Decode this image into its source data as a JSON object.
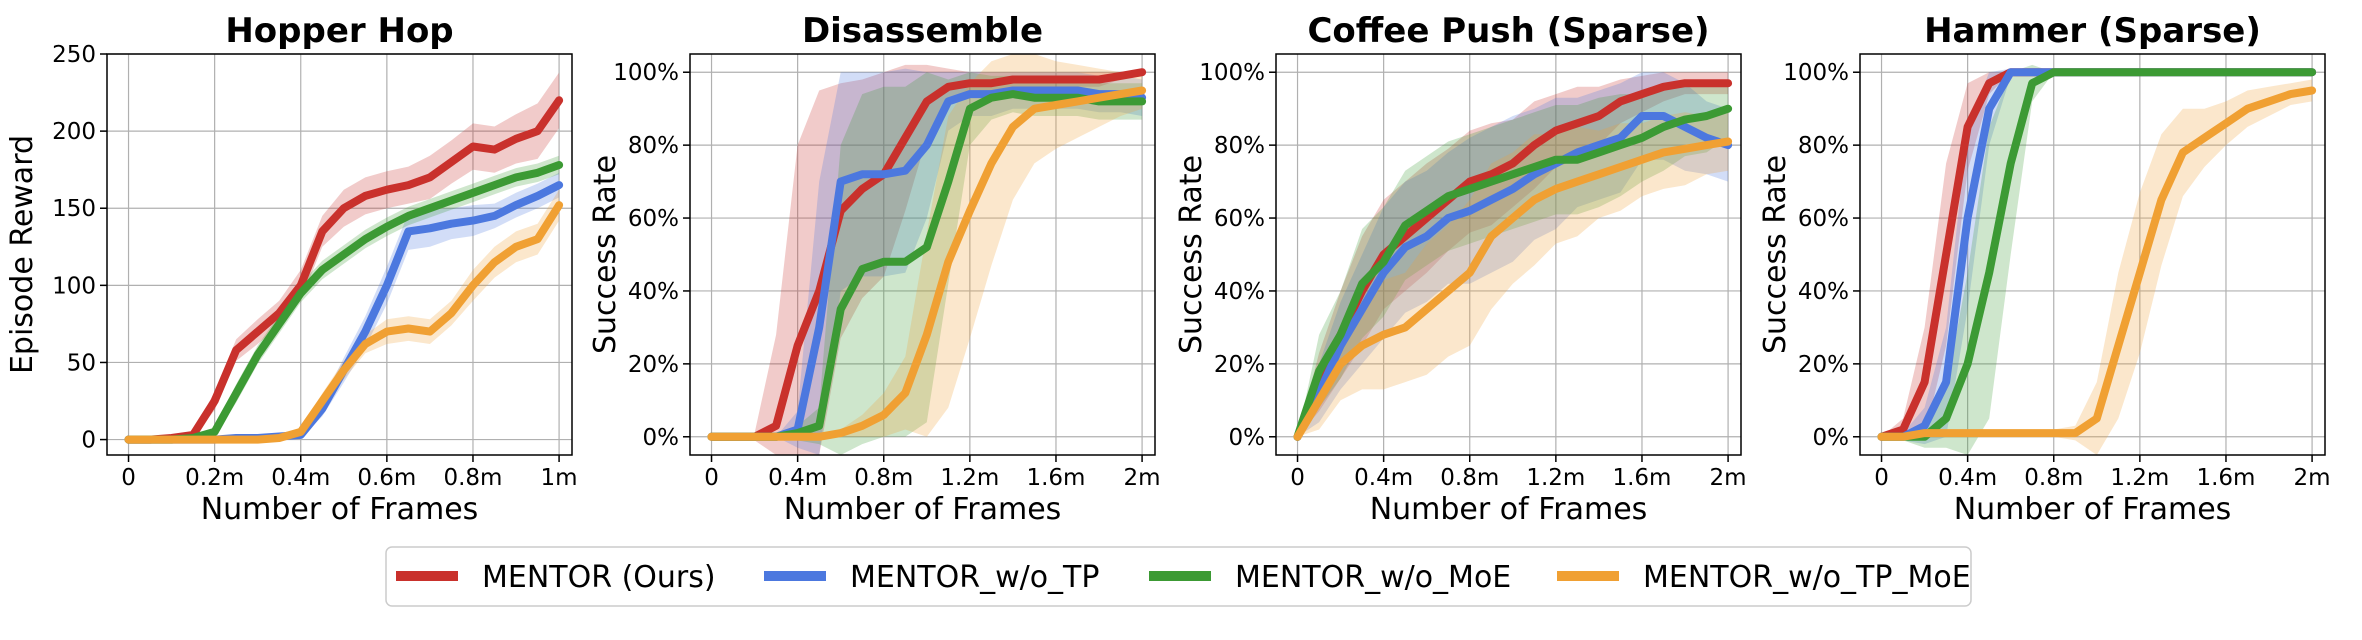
{
  "colors": {
    "series": [
      "#c9312c",
      "#4c78df",
      "#3c9a34",
      "#f0a033"
    ]
  },
  "legend": {
    "placement": "bottom-center",
    "entries": [
      "MENTOR (Ours)",
      "MENTOR_w/o_TP",
      "MENTOR_w/o_MoE",
      "MENTOR_w/o_TP_MoE"
    ]
  },
  "chart_data": [
    {
      "type": "line",
      "title": "Hopper Hop",
      "xlabel": "Number of Frames",
      "ylabel": "Episode Reward",
      "xlim": [
        -0.05,
        1.03
      ],
      "ylim": [
        -10,
        250
      ],
      "xticks": [
        0,
        0.2,
        0.4,
        0.6,
        0.8,
        1.0
      ],
      "xtick_labels": [
        "0",
        "0.2m",
        "0.4m",
        "0.6m",
        "0.8m",
        "1m"
      ],
      "yticks": [
        0,
        50,
        100,
        150,
        200,
        250
      ],
      "ytick_labels": [
        "0",
        "50",
        "100",
        "150",
        "200",
        "250"
      ],
      "grid": true,
      "x": [
        0,
        0.05,
        0.1,
        0.15,
        0.2,
        0.25,
        0.3,
        0.35,
        0.4,
        0.45,
        0.5,
        0.55,
        0.6,
        0.65,
        0.7,
        0.75,
        0.8,
        0.85,
        0.9,
        0.95,
        1.0
      ],
      "series": [
        {
          "name": "MENTOR (Ours)",
          "values": [
            0,
            0,
            1,
            3,
            25,
            58,
            70,
            82,
            100,
            135,
            150,
            158,
            162,
            165,
            170,
            180,
            190,
            188,
            195,
            200,
            220
          ],
          "band": [
            0,
            0,
            1,
            2,
            6,
            7,
            8,
            8,
            10,
            10,
            12,
            12,
            12,
            12,
            14,
            14,
            15,
            15,
            16,
            18,
            18
          ]
        },
        {
          "name": "MENTOR_w/o_TP",
          "values": [
            0,
            0,
            0,
            0,
            0,
            1,
            1,
            2,
            3,
            20,
            45,
            70,
            100,
            135,
            137,
            140,
            142,
            145,
            152,
            158,
            165
          ],
          "band": [
            0,
            0,
            0,
            0,
            0,
            0,
            0,
            1,
            2,
            5,
            8,
            10,
            12,
            12,
            12,
            10,
            10,
            8,
            8,
            8,
            8
          ]
        },
        {
          "name": "MENTOR_w/o_MoE",
          "values": [
            0,
            0,
            0,
            1,
            5,
            30,
            55,
            75,
            95,
            110,
            120,
            130,
            138,
            145,
            150,
            155,
            160,
            165,
            170,
            173,
            178
          ],
          "band": [
            0,
            0,
            0,
            1,
            3,
            6,
            6,
            6,
            6,
            6,
            6,
            6,
            6,
            6,
            6,
            6,
            6,
            6,
            6,
            6,
            6
          ]
        },
        {
          "name": "MENTOR_w/o_TP_MoE",
          "values": [
            0,
            0,
            0,
            0,
            0,
            0,
            0,
            1,
            5,
            25,
            45,
            62,
            70,
            72,
            70,
            82,
            100,
            115,
            125,
            130,
            152
          ],
          "band": [
            0,
            0,
            0,
            0,
            0,
            0,
            0,
            1,
            3,
            5,
            6,
            6,
            8,
            8,
            8,
            8,
            10,
            10,
            10,
            10,
            10
          ]
        }
      ]
    },
    {
      "type": "line",
      "title": "Disassemble",
      "xlabel": "Number of Frames",
      "ylabel": "Success Rate",
      "xlim": [
        -0.1,
        2.06
      ],
      "ylim": [
        -5,
        105
      ],
      "xticks": [
        0,
        0.4,
        0.8,
        1.2,
        1.6,
        2.0
      ],
      "xtick_labels": [
        "0",
        "0.4m",
        "0.8m",
        "1.2m",
        "1.6m",
        "2m"
      ],
      "yticks": [
        0,
        20,
        40,
        60,
        80,
        100
      ],
      "ytick_labels": [
        "0%",
        "20%",
        "40%",
        "60%",
        "80%",
        "100%"
      ],
      "grid": true,
      "x": [
        0,
        0.1,
        0.2,
        0.3,
        0.4,
        0.5,
        0.6,
        0.7,
        0.8,
        0.9,
        1.0,
        1.1,
        1.2,
        1.3,
        1.4,
        1.5,
        1.6,
        1.7,
        1.8,
        1.9,
        2.0
      ],
      "series": [
        {
          "name": "MENTOR (Ours)",
          "values": [
            0,
            0,
            0,
            3,
            25,
            40,
            62,
            68,
            72,
            82,
            92,
            96,
            97,
            97,
            98,
            98,
            98,
            98,
            98,
            99,
            100
          ],
          "band": [
            0,
            0,
            1,
            25,
            55,
            55,
            35,
            30,
            28,
            20,
            10,
            5,
            3,
            3,
            2,
            2,
            2,
            2,
            2,
            1,
            1
          ]
        },
        {
          "name": "MENTOR_w/o_TP",
          "values": [
            0,
            0,
            0,
            0,
            2,
            30,
            70,
            72,
            72,
            73,
            80,
            92,
            94,
            94,
            95,
            95,
            95,
            95,
            94,
            94,
            93
          ],
          "band": [
            0,
            0,
            0,
            0,
            5,
            40,
            30,
            28,
            28,
            28,
            20,
            8,
            6,
            6,
            5,
            5,
            5,
            5,
            5,
            5,
            5
          ]
        },
        {
          "name": "MENTOR_w/o_MoE",
          "values": [
            0,
            0,
            0,
            0,
            1,
            3,
            35,
            46,
            48,
            48,
            52,
            70,
            90,
            93,
            94,
            93,
            93,
            93,
            92,
            92,
            92
          ],
          "band": [
            0,
            0,
            0,
            0,
            2,
            5,
            45,
            48,
            48,
            48,
            48,
            28,
            10,
            6,
            5,
            5,
            5,
            5,
            5,
            5,
            5
          ]
        },
        {
          "name": "MENTOR_w/o_TP_MoE",
          "values": [
            0,
            0,
            0,
            0,
            0,
            0,
            1,
            3,
            6,
            12,
            28,
            48,
            62,
            75,
            85,
            90,
            91,
            92,
            93,
            94,
            95
          ],
          "band": [
            0,
            0,
            0,
            0,
            0,
            0,
            1,
            3,
            6,
            10,
            28,
            40,
            35,
            28,
            20,
            15,
            12,
            10,
            8,
            6,
            5
          ]
        }
      ]
    },
    {
      "type": "line",
      "title": "Coffee Push (Sparse)",
      "xlabel": "Number of Frames",
      "ylabel": "Success Rate",
      "xlim": [
        -0.1,
        2.06
      ],
      "ylim": [
        -5,
        105
      ],
      "xticks": [
        0,
        0.4,
        0.8,
        1.2,
        1.6,
        2.0
      ],
      "xtick_labels": [
        "0",
        "0.4m",
        "0.8m",
        "1.2m",
        "1.6m",
        "2m"
      ],
      "yticks": [
        0,
        20,
        40,
        60,
        80,
        100
      ],
      "ytick_labels": [
        "0%",
        "20%",
        "40%",
        "60%",
        "80%",
        "100%"
      ],
      "grid": true,
      "x": [
        0,
        0.1,
        0.2,
        0.3,
        0.4,
        0.5,
        0.6,
        0.7,
        0.8,
        0.9,
        1.0,
        1.1,
        1.2,
        1.3,
        1.4,
        1.5,
        1.6,
        1.7,
        1.8,
        1.9,
        2.0
      ],
      "series": [
        {
          "name": "MENTOR (Ours)",
          "values": [
            0,
            15,
            28,
            40,
            50,
            55,
            60,
            65,
            70,
            72,
            75,
            80,
            84,
            86,
            88,
            92,
            94,
            96,
            97,
            97,
            97
          ],
          "band": [
            0,
            8,
            12,
            15,
            15,
            15,
            15,
            14,
            14,
            14,
            12,
            12,
            10,
            10,
            8,
            6,
            5,
            4,
            3,
            3,
            3
          ]
        },
        {
          "name": "MENTOR_w/o_TP",
          "values": [
            0,
            12,
            25,
            35,
            45,
            52,
            55,
            60,
            62,
            65,
            68,
            72,
            75,
            78,
            80,
            82,
            88,
            88,
            85,
            82,
            80
          ],
          "band": [
            0,
            8,
            12,
            15,
            18,
            18,
            18,
            18,
            20,
            20,
            20,
            18,
            18,
            15,
            15,
            15,
            12,
            12,
            12,
            10,
            10
          ]
        },
        {
          "name": "MENTOR_w/o_MoE",
          "values": [
            0,
            18,
            28,
            42,
            48,
            58,
            62,
            66,
            68,
            70,
            72,
            74,
            76,
            76,
            78,
            80,
            82,
            85,
            87,
            88,
            90
          ],
          "band": [
            0,
            10,
            12,
            15,
            15,
            15,
            15,
            15,
            15,
            15,
            15,
            15,
            15,
            15,
            15,
            14,
            12,
            12,
            10,
            10,
            8
          ]
        },
        {
          "name": "MENTOR_w/o_TP_MoE",
          "values": [
            0,
            10,
            20,
            25,
            28,
            30,
            35,
            40,
            45,
            55,
            60,
            65,
            68,
            70,
            72,
            74,
            76,
            78,
            79,
            80,
            81
          ],
          "band": [
            0,
            8,
            10,
            12,
            15,
            15,
            18,
            18,
            20,
            20,
            18,
            18,
            15,
            15,
            12,
            12,
            10,
            10,
            10,
            8,
            8
          ]
        }
      ]
    },
    {
      "type": "line",
      "title": "Hammer (Sparse)",
      "xlabel": "Number of Frames",
      "ylabel": "Success Rate",
      "xlim": [
        -0.1,
        2.06
      ],
      "ylim": [
        -5,
        105
      ],
      "xticks": [
        0,
        0.4,
        0.8,
        1.2,
        1.6,
        2.0
      ],
      "xtick_labels": [
        "0",
        "0.4m",
        "0.8m",
        "1.2m",
        "1.6m",
        "2m"
      ],
      "yticks": [
        0,
        20,
        40,
        60,
        80,
        100
      ],
      "ytick_labels": [
        "0%",
        "20%",
        "40%",
        "60%",
        "80%",
        "100%"
      ],
      "grid": true,
      "x": [
        0,
        0.1,
        0.2,
        0.3,
        0.4,
        0.5,
        0.6,
        0.7,
        0.8,
        0.9,
        1.0,
        1.1,
        1.2,
        1.3,
        1.4,
        1.5,
        1.6,
        1.7,
        1.8,
        1.9,
        2.0
      ],
      "series": [
        {
          "name": "MENTOR (Ours)",
          "values": [
            0,
            2,
            15,
            50,
            85,
            97,
            100,
            100,
            100,
            100,
            100,
            100,
            100,
            100,
            100,
            100,
            100,
            100,
            100,
            100,
            100
          ],
          "band": [
            0,
            3,
            15,
            25,
            12,
            3,
            0,
            0,
            0,
            0,
            0,
            0,
            0,
            0,
            0,
            0,
            0,
            0,
            0,
            0,
            0
          ]
        },
        {
          "name": "MENTOR_w/o_TP",
          "values": [
            0,
            0,
            3,
            15,
            60,
            90,
            100,
            100,
            100,
            100,
            100,
            100,
            100,
            100,
            100,
            100,
            100,
            100,
            100,
            100,
            100
          ],
          "band": [
            0,
            1,
            5,
            15,
            25,
            10,
            1,
            0,
            0,
            0,
            0,
            0,
            0,
            0,
            0,
            0,
            0,
            0,
            0,
            0,
            0
          ]
        },
        {
          "name": "MENTOR_w/o_MoE",
          "values": [
            0,
            0,
            0,
            5,
            20,
            45,
            75,
            97,
            100,
            100,
            100,
            100,
            100,
            100,
            100,
            100,
            100,
            100,
            100,
            100,
            100
          ],
          "band": [
            0,
            1,
            3,
            8,
            25,
            40,
            25,
            5,
            0,
            0,
            0,
            0,
            0,
            0,
            0,
            0,
            0,
            0,
            0,
            0,
            0
          ]
        },
        {
          "name": "MENTOR_w/o_TP_MoE",
          "values": [
            0,
            0,
            1,
            1,
            1,
            1,
            1,
            1,
            1,
            1,
            5,
            25,
            45,
            65,
            78,
            82,
            86,
            90,
            92,
            94,
            95
          ],
          "band": [
            0,
            1,
            1,
            1,
            1,
            1,
            1,
            1,
            1,
            2,
            10,
            20,
            22,
            18,
            12,
            8,
            6,
            5,
            4,
            3,
            3
          ]
        }
      ]
    }
  ]
}
